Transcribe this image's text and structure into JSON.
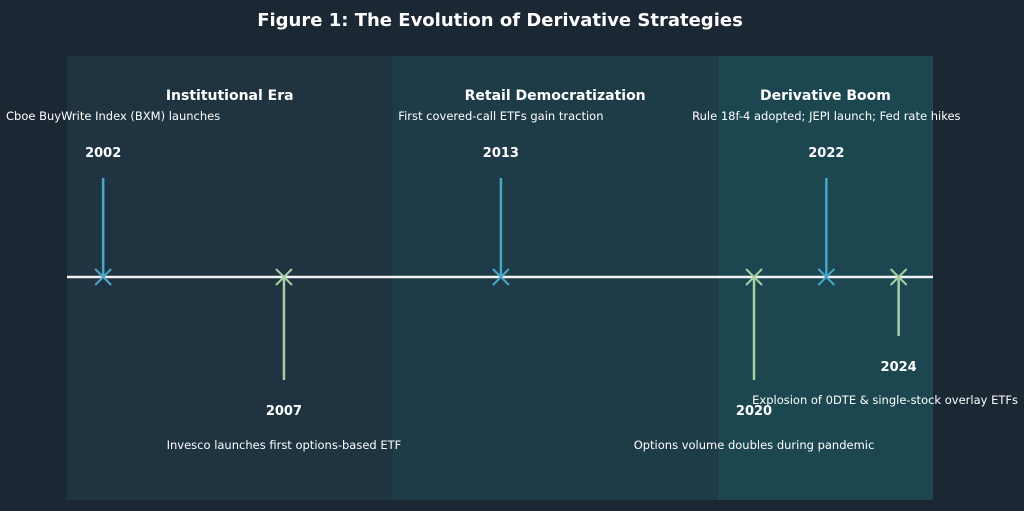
{
  "title": "Figure 1: The Evolution of Derivative Strategies",
  "colors": {
    "background": "#1b2733",
    "era_1": "#1f3341",
    "era_2": "#1e3c48",
    "era_3": "#1c4650",
    "timeline": "#f2f2f2",
    "above_marker": "#49a6c8",
    "below_marker": "#a6cfa3"
  },
  "eras": [
    {
      "label": "Institutional Era",
      "start": 2001,
      "end": 2010
    },
    {
      "label": "Retail Democratization",
      "start": 2010,
      "end": 2019
    },
    {
      "label": "Derivative Boom",
      "start": 2019,
      "end": 2024.95
    }
  ],
  "events": [
    {
      "year": "2002",
      "value": 2002,
      "text": "Cboe BuyWrite Index (BXM) launches",
      "side": "above",
      "stem": "long"
    },
    {
      "year": "2007",
      "value": 2007,
      "text": "Invesco launches first options-based ETF",
      "side": "below",
      "stem": "long"
    },
    {
      "year": "2013",
      "value": 2013,
      "text": "First covered-call ETFs gain traction",
      "side": "above",
      "stem": "long"
    },
    {
      "year": "2020",
      "value": 2020,
      "text": "Options volume doubles during pandemic",
      "side": "below",
      "stem": "long"
    },
    {
      "year": "2022",
      "value": 2022,
      "text": "Rule 18f-4 adopted; JEPI launch; Fed rate hikes",
      "side": "above",
      "stem": "long"
    },
    {
      "year": "2024",
      "value": 2024,
      "text": "Explosion of 0DTE & single-stock overlay ETFs",
      "side": "below",
      "stem": "short"
    }
  ],
  "axis": {
    "min": 2001,
    "max": 2024.95
  }
}
